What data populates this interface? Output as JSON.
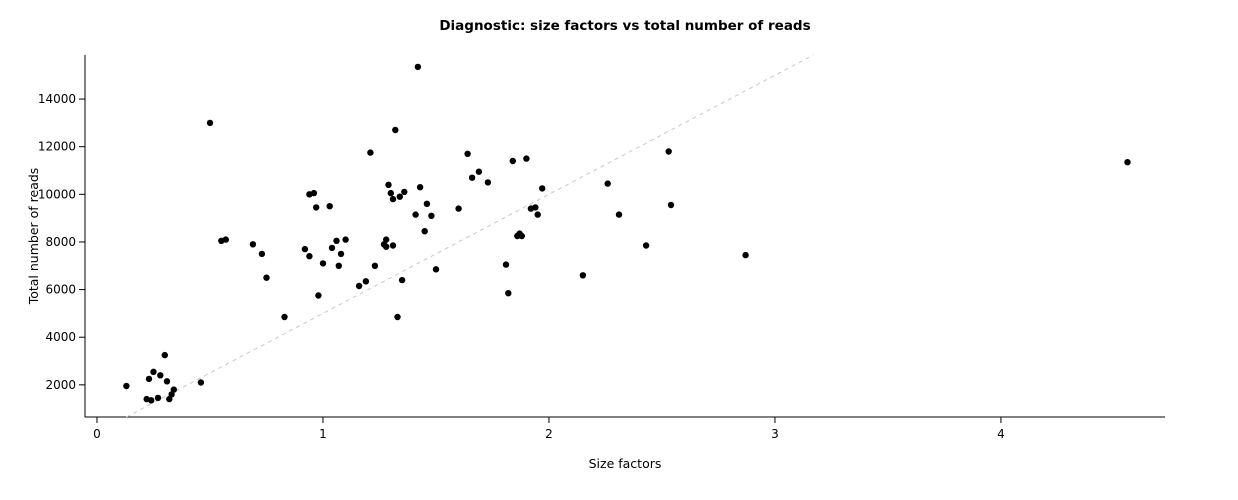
{
  "chart_data": {
    "type": "scatter",
    "title": "Diagnostic: size factors vs total number of reads",
    "xlabel": "Size factors",
    "ylabel": "Total number of reads",
    "xlim": [
      -0.053,
      4.726
    ],
    "ylim": [
      650,
      15850
    ],
    "x_ticks": [
      0,
      1,
      2,
      3,
      4
    ],
    "y_ticks": [
      2000,
      4000,
      6000,
      8000,
      10000,
      12000,
      14000
    ],
    "grid": false,
    "legend": "none",
    "point_color": "#000000",
    "axis_color": "#000000",
    "reference_line": {
      "type": "abline",
      "intercept": 0,
      "slope": 5000,
      "style": "dashed",
      "color": "#c8c8c8"
    },
    "points": [
      [
        0.13,
        1950
      ],
      [
        0.22,
        1400
      ],
      [
        0.23,
        2250
      ],
      [
        0.24,
        1350
      ],
      [
        0.25,
        2550
      ],
      [
        0.27,
        1450
      ],
      [
        0.28,
        2400
      ],
      [
        0.3,
        3250
      ],
      [
        0.31,
        2150
      ],
      [
        0.32,
        1400
      ],
      [
        0.33,
        1600
      ],
      [
        0.34,
        1800
      ],
      [
        0.46,
        2100
      ],
      [
        0.5,
        13000
      ],
      [
        0.55,
        8050
      ],
      [
        0.57,
        8100
      ],
      [
        0.69,
        7900
      ],
      [
        0.73,
        7500
      ],
      [
        0.75,
        6500
      ],
      [
        0.83,
        4850
      ],
      [
        0.92,
        7700
      ],
      [
        0.94,
        7400
      ],
      [
        0.94,
        10000
      ],
      [
        0.96,
        10050
      ],
      [
        0.97,
        9450
      ],
      [
        0.98,
        5750
      ],
      [
        1.0,
        7100
      ],
      [
        1.03,
        9500
      ],
      [
        1.04,
        7750
      ],
      [
        1.06,
        8050
      ],
      [
        1.07,
        7000
      ],
      [
        1.08,
        7500
      ],
      [
        1.1,
        8100
      ],
      [
        1.16,
        6150
      ],
      [
        1.19,
        6350
      ],
      [
        1.21,
        11750
      ],
      [
        1.23,
        7000
      ],
      [
        1.27,
        7900
      ],
      [
        1.28,
        8100
      ],
      [
        1.28,
        7800
      ],
      [
        1.29,
        10400
      ],
      [
        1.3,
        10050
      ],
      [
        1.31,
        9800
      ],
      [
        1.31,
        7850
      ],
      [
        1.32,
        12700
      ],
      [
        1.33,
        4850
      ],
      [
        1.34,
        9900
      ],
      [
        1.35,
        6400
      ],
      [
        1.36,
        10100
      ],
      [
        1.41,
        9150
      ],
      [
        1.42,
        15350
      ],
      [
        1.43,
        10300
      ],
      [
        1.45,
        8450
      ],
      [
        1.46,
        9600
      ],
      [
        1.48,
        9100
      ],
      [
        1.5,
        6850
      ],
      [
        1.6,
        9400
      ],
      [
        1.64,
        11700
      ],
      [
        1.66,
        10700
      ],
      [
        1.69,
        10950
      ],
      [
        1.73,
        10500
      ],
      [
        1.81,
        7050
      ],
      [
        1.82,
        5850
      ],
      [
        1.84,
        11400
      ],
      [
        1.86,
        8250
      ],
      [
        1.87,
        8350
      ],
      [
        1.88,
        8250
      ],
      [
        1.9,
        11500
      ],
      [
        1.92,
        9400
      ],
      [
        1.94,
        9450
      ],
      [
        1.95,
        9150
      ],
      [
        1.97,
        10250
      ],
      [
        2.15,
        6600
      ],
      [
        2.26,
        10450
      ],
      [
        2.31,
        9150
      ],
      [
        2.43,
        7850
      ],
      [
        2.53,
        11800
      ],
      [
        2.54,
        9550
      ],
      [
        2.87,
        7450
      ],
      [
        4.56,
        11350
      ]
    ]
  }
}
